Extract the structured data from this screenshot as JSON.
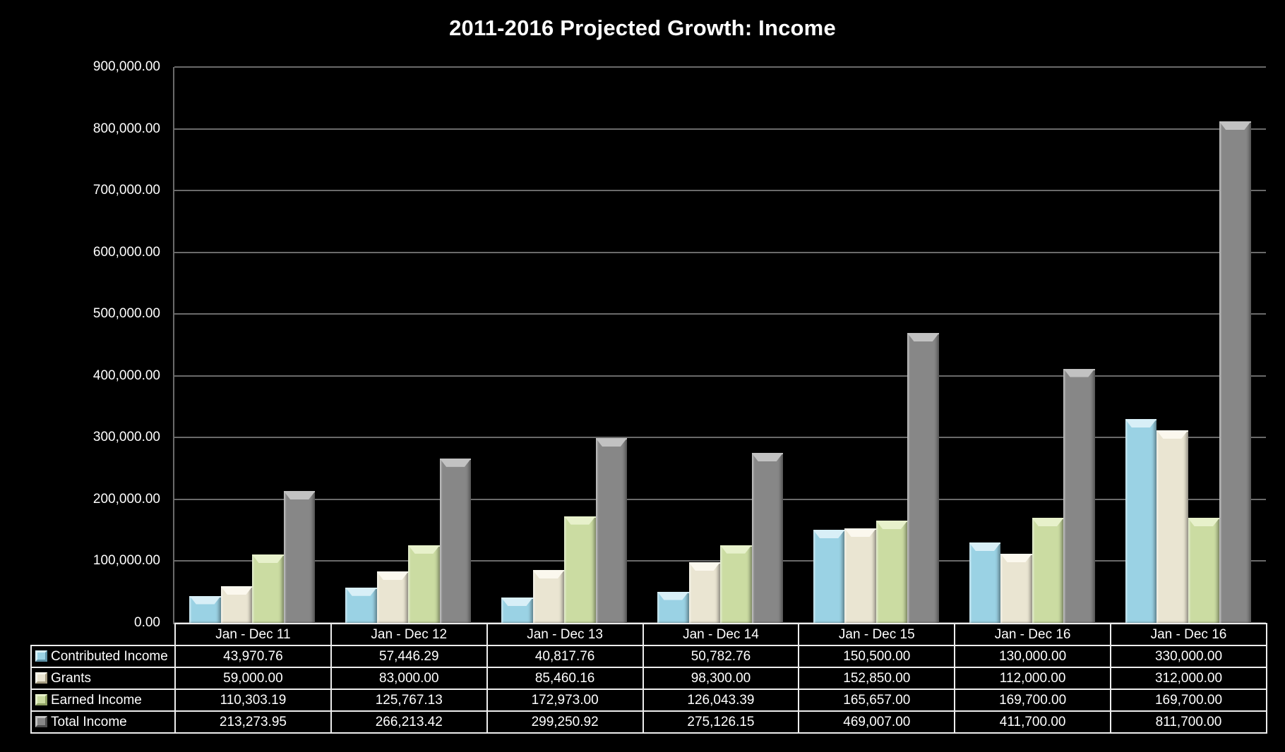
{
  "chart_data": {
    "type": "bar",
    "title": "2011-2016 Projected Growth: Income",
    "xlabel": "",
    "ylabel": "",
    "background_color": "#000000",
    "gridline_color": "#6A6A6A",
    "table_border_color": "#EDEDED",
    "grid": true,
    "legend_position": "table-left",
    "ylim": [
      0,
      900000
    ],
    "ytick_interval": 100000,
    "ytick_labels": [
      "0.00",
      "100,000.00",
      "200,000.00",
      "300,000.00",
      "400,000.00",
      "500,000.00",
      "600,000.00",
      "700,000.00",
      "800,000.00",
      "900,000.00"
    ],
    "categories": [
      "Jan - Dec 11",
      "Jan - Dec 12",
      "Jan - Dec 13",
      "Jan - Dec 14",
      "Jan - Dec 15",
      "Jan - Dec 16",
      "Jan - Dec 16"
    ],
    "series": [
      {
        "name": "Contributed Income",
        "values": [
          43970.76,
          57446.29,
          40817.76,
          50782.76,
          150500.0,
          130000.0,
          330000.0
        ],
        "formatted": [
          "43,970.76",
          "57,446.29",
          "40,817.76",
          "50,782.76",
          "150,500.00",
          "130,000.00",
          "330,000.00"
        ],
        "colors": {
          "base": "#9AD2E4",
          "light": "#D8EFF7",
          "dark": "#5E93A8"
        }
      },
      {
        "name": "Grants",
        "values": [
          59000.0,
          83000.0,
          85460.16,
          98300.0,
          152850.0,
          112000.0,
          312000.0
        ],
        "formatted": [
          "59,000.00",
          "83,000.00",
          "85,460.16",
          "98,300.00",
          "152,850.00",
          "112,000.00",
          "312,000.00"
        ],
        "colors": {
          "base": "#EAE5D2",
          "light": "#FBF8EE",
          "dark": "#A79E83"
        }
      },
      {
        "name": "Earned Income",
        "values": [
          110303.19,
          125767.13,
          172973.0,
          126043.39,
          165657.0,
          169700.0,
          169700.0
        ],
        "formatted": [
          "110,303.19",
          "125,767.13",
          "172,973.00",
          "126,043.39",
          "165,657.00",
          "169,700.00",
          "169,700.00"
        ],
        "colors": {
          "base": "#CBDCA2",
          "light": "#E7F1CB",
          "dark": "#90A365"
        }
      },
      {
        "name": "Total Income",
        "values": [
          213273.95,
          266213.42,
          299250.92,
          275126.15,
          469007.0,
          411700.0,
          811700.0
        ],
        "formatted": [
          "213,273.95",
          "266,213.42",
          "299,250.92",
          "275,126.15",
          "469,007.00",
          "411,700.00",
          "811,700.00"
        ],
        "colors": {
          "base": "#878787",
          "light": "#C2C2C2",
          "dark": "#4E4E4E"
        }
      }
    ]
  }
}
